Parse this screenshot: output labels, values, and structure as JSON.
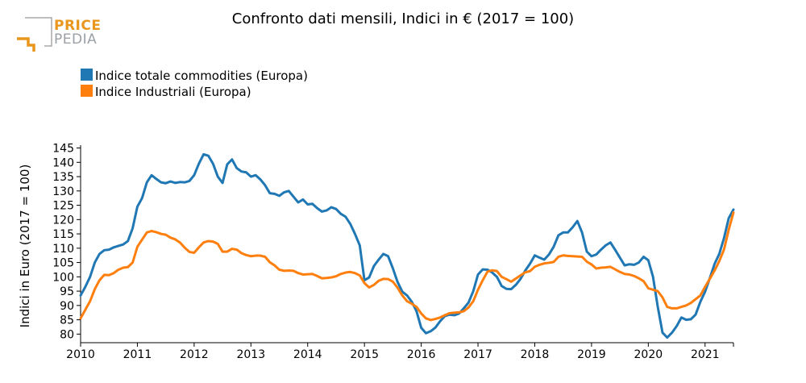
{
  "logo": {
    "line1": "PRICE",
    "line2": "PEDIA",
    "orange": "#e8961c",
    "gray": "#9aa0a6"
  },
  "chart_data": {
    "type": "line",
    "title": "Confronto dati mensili, Indici in € (2017 = 100)",
    "xlabel": "",
    "ylabel": "Indici in Euro (2017 = 100)",
    "ylim": [
      77,
      146
    ],
    "yticks": [
      80,
      85,
      90,
      95,
      100,
      105,
      110,
      115,
      120,
      125,
      130,
      135,
      140,
      145
    ],
    "xlim": [
      2010.0,
      2021.5
    ],
    "xticks": [
      "2010",
      "2011",
      "2012",
      "2013",
      "2014",
      "2015",
      "2016",
      "2017",
      "2018",
      "2019",
      "2020",
      "2021"
    ],
    "legend_position": "top-left",
    "series": [
      {
        "name": "Indice totale commodities (Europa)",
        "color": "#1f77b4",
        "x": [
          2010.0,
          2010.083,
          2010.167,
          2010.25,
          2010.333,
          2010.417,
          2010.5,
          2010.583,
          2010.667,
          2010.75,
          2010.833,
          2010.917,
          2011.0,
          2011.083,
          2011.167,
          2011.25,
          2011.333,
          2011.417,
          2011.5,
          2011.583,
          2011.667,
          2011.75,
          2011.833,
          2011.917,
          2012.0,
          2012.083,
          2012.167,
          2012.25,
          2012.333,
          2012.417,
          2012.5,
          2012.583,
          2012.667,
          2012.75,
          2012.833,
          2012.917,
          2013.0,
          2013.083,
          2013.167,
          2013.25,
          2013.333,
          2013.417,
          2013.5,
          2013.583,
          2013.667,
          2013.75,
          2013.833,
          2013.917,
          2014.0,
          2014.083,
          2014.167,
          2014.25,
          2014.333,
          2014.417,
          2014.5,
          2014.583,
          2014.667,
          2014.75,
          2014.833,
          2014.917,
          2015.0,
          2015.083,
          2015.167,
          2015.25,
          2015.333,
          2015.417,
          2015.5,
          2015.583,
          2015.667,
          2015.75,
          2015.833,
          2015.917,
          2016.0,
          2016.083,
          2016.167,
          2016.25,
          2016.333,
          2016.417,
          2016.5,
          2016.583,
          2016.667,
          2016.75,
          2016.833,
          2016.917,
          2017.0,
          2017.083,
          2017.167,
          2017.25,
          2017.333,
          2017.417,
          2017.5,
          2017.583,
          2017.667,
          2017.75,
          2017.833,
          2017.917,
          2018.0,
          2018.083,
          2018.167,
          2018.25,
          2018.333,
          2018.417,
          2018.5,
          2018.583,
          2018.667,
          2018.75,
          2018.833,
          2018.917,
          2019.0,
          2019.083,
          2019.167,
          2019.25,
          2019.333,
          2019.417,
          2019.5,
          2019.583,
          2019.667,
          2019.75,
          2019.833,
          2019.917,
          2020.0,
          2020.083,
          2020.167,
          2020.25,
          2020.333,
          2020.417,
          2020.5,
          2020.583,
          2020.667,
          2020.75,
          2020.833,
          2020.917,
          2021.0,
          2021.083,
          2021.167,
          2021.25,
          2021.333,
          2021.417,
          2021.5
        ],
        "values": [
          93.5,
          96.5,
          100,
          105,
          108,
          109.3,
          109.5,
          110.3,
          110.8,
          111.3,
          112.5,
          117,
          124.5,
          127.5,
          133,
          135.5,
          134.2,
          133,
          132.7,
          133.3,
          132.8,
          133.1,
          133,
          133.5,
          135.5,
          139.5,
          142.8,
          142.3,
          139.5,
          135,
          132.8,
          139.3,
          141,
          138,
          136.8,
          136.5,
          135,
          135.5,
          134,
          132,
          129.2,
          129,
          128.3,
          129.5,
          130,
          128,
          126,
          127,
          125.3,
          125.5,
          124,
          122.8,
          123.2,
          124.3,
          123.7,
          122,
          121,
          118.5,
          115,
          111,
          98.8,
          99.8,
          103.8,
          106,
          108,
          107.2,
          103,
          98.2,
          94.8,
          93.5,
          91.3,
          88,
          82.2,
          80.3,
          81,
          82.3,
          84.5,
          86.3,
          86.8,
          86.6,
          87.2,
          89,
          91,
          95,
          100.8,
          102.6,
          102.5,
          101.5,
          100,
          96.8,
          95.8,
          95.7,
          97.2,
          99.3,
          102.2,
          104.6,
          107.5,
          106.7,
          106,
          107.8,
          110.5,
          114.5,
          115.5,
          115.5,
          117.3,
          119.5,
          115.5,
          108.8,
          107.2,
          107.8,
          109.5,
          111,
          112,
          109.4,
          106.7,
          104,
          104.4,
          104.2,
          105,
          107,
          105.8,
          100,
          89.5,
          80.5,
          78.8,
          80.5,
          82.8,
          85.8,
          85,
          85.2,
          86.8,
          91.3,
          94.8,
          99.5,
          104.5,
          108,
          113.5,
          120.5,
          123.5
        ]
      },
      {
        "name": "Indice Industriali (Europa)",
        "color": "#ff7f0e",
        "x": [
          2010.0,
          2010.083,
          2010.167,
          2010.25,
          2010.333,
          2010.417,
          2010.5,
          2010.583,
          2010.667,
          2010.75,
          2010.833,
          2010.917,
          2011.0,
          2011.083,
          2011.167,
          2011.25,
          2011.333,
          2011.417,
          2011.5,
          2011.583,
          2011.667,
          2011.75,
          2011.833,
          2011.917,
          2012.0,
          2012.083,
          2012.167,
          2012.25,
          2012.333,
          2012.417,
          2012.5,
          2012.583,
          2012.667,
          2012.75,
          2012.833,
          2012.917,
          2013.0,
          2013.083,
          2013.167,
          2013.25,
          2013.333,
          2013.417,
          2013.5,
          2013.583,
          2013.667,
          2013.75,
          2013.833,
          2013.917,
          2014.0,
          2014.083,
          2014.167,
          2014.25,
          2014.333,
          2014.417,
          2014.5,
          2014.583,
          2014.667,
          2014.75,
          2014.833,
          2014.917,
          2015.0,
          2015.083,
          2015.167,
          2015.25,
          2015.333,
          2015.417,
          2015.5,
          2015.583,
          2015.667,
          2015.75,
          2015.833,
          2015.917,
          2016.0,
          2016.083,
          2016.167,
          2016.25,
          2016.333,
          2016.417,
          2016.5,
          2016.583,
          2016.667,
          2016.75,
          2016.833,
          2016.917,
          2017.0,
          2017.083,
          2017.167,
          2017.25,
          2017.333,
          2017.417,
          2017.5,
          2017.583,
          2017.667,
          2017.75,
          2017.833,
          2017.917,
          2018.0,
          2018.083,
          2018.167,
          2018.25,
          2018.333,
          2018.417,
          2018.5,
          2018.583,
          2018.667,
          2018.75,
          2018.833,
          2018.917,
          2019.0,
          2019.083,
          2019.167,
          2019.25,
          2019.333,
          2019.417,
          2019.5,
          2019.583,
          2019.667,
          2019.75,
          2019.833,
          2019.917,
          2020.0,
          2020.083,
          2020.167,
          2020.25,
          2020.333,
          2020.417,
          2020.5,
          2020.583,
          2020.667,
          2020.75,
          2020.833,
          2020.917,
          2021.0,
          2021.083,
          2021.167,
          2021.25,
          2021.333,
          2021.417,
          2021.5
        ],
        "values": [
          85.5,
          88.5,
          91.5,
          95.7,
          98.8,
          100.7,
          100.6,
          101.3,
          102.5,
          103.2,
          103.4,
          105,
          110.5,
          113,
          115.5,
          116,
          115.6,
          115,
          114.7,
          113.7,
          113.1,
          112,
          110.2,
          108.7,
          108.4,
          110.3,
          112,
          112.5,
          112.3,
          111.5,
          108.8,
          108.8,
          109.8,
          109.5,
          108.3,
          107.6,
          107.2,
          107.4,
          107.4,
          107,
          105.1,
          104,
          102.5,
          102.1,
          102.2,
          102.1,
          101.3,
          100.8,
          100.9,
          101,
          100.3,
          99.5,
          99.6,
          99.8,
          100.2,
          101,
          101.5,
          101.7,
          101.3,
          100.5,
          97.8,
          96.3,
          97.2,
          98.6,
          99.3,
          99.2,
          98.3,
          96.2,
          93.5,
          91.5,
          90.6,
          89.5,
          87.2,
          85.5,
          84.9,
          85.3,
          85.8,
          86.6,
          87.3,
          87.5,
          87.6,
          88,
          89.3,
          91.5,
          95.5,
          98.8,
          101.8,
          102.3,
          102,
          100,
          99.2,
          98.3,
          99.4,
          100.5,
          101.6,
          102,
          103.5,
          104.2,
          104.7,
          104.9,
          105.2,
          107,
          107.5,
          107.3,
          107.2,
          107.1,
          107,
          105.3,
          104.3,
          102.9,
          103.2,
          103.3,
          103.5,
          102.6,
          101.7,
          101,
          100.8,
          100.3,
          99.5,
          98.5,
          96,
          95.5,
          95,
          92.8,
          89.5,
          89,
          89,
          89.5,
          90,
          90.9,
          92.2,
          93.5,
          96.5,
          99.3,
          102.2,
          105.5,
          109.5,
          116.5,
          122.5
        ]
      }
    ]
  }
}
